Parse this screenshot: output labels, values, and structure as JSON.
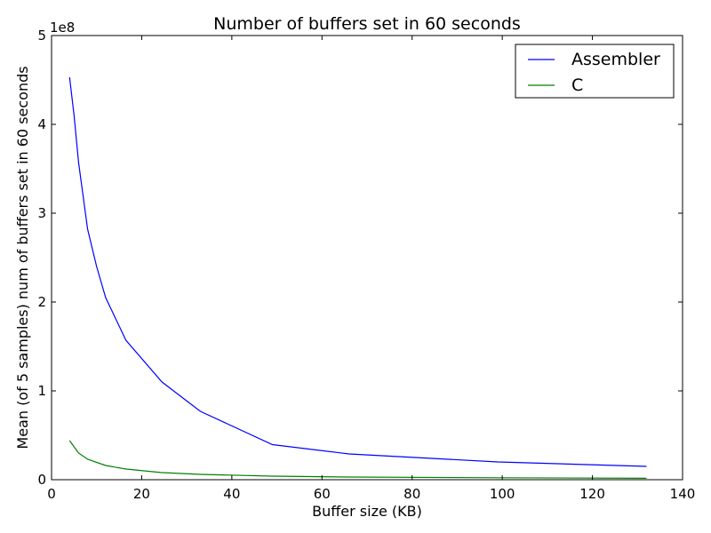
{
  "chart_data": {
    "type": "line",
    "title": "Number of buffers set in 60 seconds",
    "xlabel": "Buffer size (KB)",
    "ylabel": "Mean (of 5 samples) num of buffers set in 60 seconds",
    "y_offset_text": "1e8",
    "xlim": [
      0,
      140
    ],
    "ylim": [
      0,
      500000000
    ],
    "xticks": [
      0,
      20,
      40,
      60,
      80,
      100,
      120,
      140
    ],
    "yticks": [
      0,
      100000000,
      200000000,
      300000000,
      400000000,
      500000000
    ],
    "xtick_labels": [
      "0",
      "20",
      "40",
      "60",
      "80",
      "100",
      "120",
      "140"
    ],
    "ytick_labels": [
      "0",
      "1",
      "2",
      "3",
      "4",
      "5"
    ],
    "grid": false,
    "legend_position": "top-right",
    "series": [
      {
        "name": "Assembler",
        "color": "#0000ff",
        "x": [
          4,
          5,
          6,
          8,
          10,
          12,
          16.5,
          24.5,
          33,
          49,
          66,
          99,
          132
        ],
        "y": [
          453000000,
          410000000,
          357000000,
          282000000,
          240000000,
          205000000,
          157000000,
          110000000,
          77000000,
          39500000,
          29000000,
          20000000,
          15000000
        ]
      },
      {
        "name": "C",
        "color": "#008000",
        "x": [
          4,
          6,
          8,
          12,
          16.5,
          24.5,
          33,
          49,
          66,
          99,
          132
        ],
        "y": [
          44000000,
          30000000,
          23000000,
          16000000,
          12000000,
          8000000,
          6000000,
          4000000,
          3000000,
          2200000,
          1600000
        ]
      }
    ]
  }
}
